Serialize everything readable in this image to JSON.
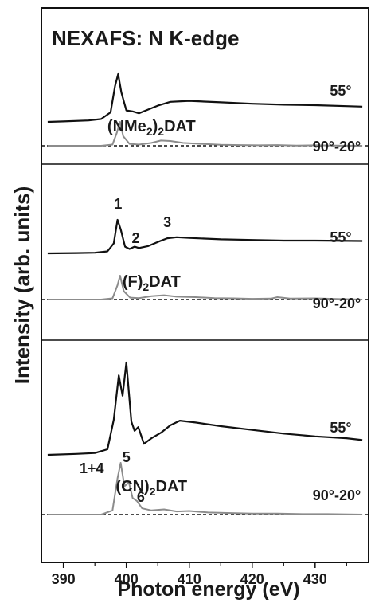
{
  "chart_data": {
    "type": "line",
    "title": "NEXAFS: N K-edge",
    "xlabel": "Photon energy (eV)",
    "ylabel": "Intensity (arb. units)",
    "xlim": [
      386.5,
      438.5
    ],
    "x_ticks": [
      390,
      400,
      410,
      420,
      430
    ],
    "x_tick_labels": [
      "390",
      "400",
      "410",
      "420",
      "430"
    ],
    "y_ticks": false,
    "grid": false,
    "legend": "none",
    "colors": {
      "angle_55": "#111111",
      "difference": "#8c8c8c",
      "baseline": "#111111"
    },
    "panels": [
      {
        "compound": "(NMe₂)₂DAT",
        "compound_base": "(NMe",
        "compound_sub1": "2",
        "compound_mid": ")",
        "compound_sub2": "2",
        "compound_tail": "DAT",
        "angle_label": "55°",
        "diff_label": "90°-20°",
        "peak_labels": [],
        "series": [
          {
            "angle": "55°",
            "color": "#111111",
            "x": [
              387.5,
              390,
              394,
              396,
              397.5,
              398.2,
              398.7,
              399.2,
              400,
              401,
              402,
              403.5,
              405,
              407,
              410,
              415,
              420,
              425,
              430,
              435,
              437.5
            ],
            "y": [
              0.0,
              0.01,
              0.03,
              0.06,
              0.2,
              0.75,
              1.0,
              0.62,
              0.24,
              0.22,
              0.18,
              0.26,
              0.34,
              0.42,
              0.44,
              0.41,
              0.38,
              0.36,
              0.35,
              0.33,
              0.32
            ]
          },
          {
            "angle": "90°-20°",
            "color": "#8c8c8c",
            "x": [
              387.5,
              396,
              397.8,
              398.5,
              399,
              399.5,
              400.5,
              402,
              404,
              405.5,
              407,
              409,
              412,
              415,
              418,
              421,
              424,
              427,
              430,
              433,
              437.5
            ],
            "y": [
              0.0,
              0.0,
              0.05,
              0.55,
              1.0,
              0.4,
              0.08,
              0.05,
              0.12,
              0.22,
              0.2,
              0.12,
              0.08,
              0.04,
              0.03,
              0.02,
              0.03,
              0.01,
              0.02,
              0.01,
              0.0
            ]
          }
        ]
      },
      {
        "compound": "(F)₂DAT",
        "compound_base": "(F)",
        "compound_sub1": "2",
        "compound_mid": "",
        "compound_sub2": "",
        "compound_tail": "DAT",
        "angle_label": "55°",
        "diff_label": "90°-20°",
        "peak_labels": [
          {
            "text": "1",
            "x": 398.7
          },
          {
            "text": "2",
            "x": 401.5
          },
          {
            "text": "3",
            "x": 406.5
          }
        ],
        "series": [
          {
            "angle": "55°",
            "color": "#111111",
            "x": [
              387.5,
              392,
              395,
              397,
              398,
              398.6,
              399.1,
              399.8,
              400.5,
              401.3,
              402,
              403.5,
              405,
              406.5,
              408,
              410,
              415,
              420,
              425,
              430,
              437.5
            ],
            "y": [
              0.0,
              0.01,
              0.02,
              0.06,
              0.3,
              1.0,
              0.72,
              0.2,
              0.13,
              0.2,
              0.16,
              0.22,
              0.34,
              0.45,
              0.48,
              0.46,
              0.42,
              0.4,
              0.38,
              0.38,
              0.37
            ]
          },
          {
            "angle": "90°-20°",
            "color": "#8c8c8c",
            "x": [
              387.5,
              396,
              397.8,
              398.6,
              399,
              399.6,
              400.6,
              402,
              404,
              406,
              408,
              411,
              414,
              417,
              420,
              423,
              424,
              426,
              430,
              434,
              437.5
            ],
            "y": [
              0.0,
              0.0,
              0.05,
              0.6,
              1.0,
              0.35,
              0.08,
              0.06,
              0.14,
              0.18,
              0.12,
              0.1,
              0.06,
              0.05,
              0.03,
              0.04,
              0.1,
              0.04,
              0.05,
              0.02,
              0.0
            ]
          }
        ]
      },
      {
        "compound": "(CN)₂DAT",
        "compound_base": "(CN)",
        "compound_sub1": "2",
        "compound_mid": "",
        "compound_sub2": "",
        "compound_tail": "DAT",
        "angle_label": "55°",
        "diff_label": "90°-20°",
        "peak_labels": [
          {
            "text": "1+4",
            "x": 394.5
          },
          {
            "text": "5",
            "x": 400.0
          },
          {
            "text": "6",
            "x": 402.3
          }
        ],
        "series": [
          {
            "angle": "55°",
            "color": "#111111",
            "x": [
              387.5,
              392,
              395,
              397,
              398,
              398.8,
              399.4,
              400,
              400.8,
              401.3,
              401.9,
              402.8,
              404,
              405.5,
              407,
              408.5,
              411,
              415,
              420,
              425,
              430,
              435,
              437.5
            ],
            "y": [
              0.0,
              0.01,
              0.02,
              0.06,
              0.38,
              0.86,
              0.64,
              1.0,
              0.36,
              0.26,
              0.3,
              0.12,
              0.18,
              0.24,
              0.32,
              0.37,
              0.35,
              0.31,
              0.27,
              0.23,
              0.2,
              0.18,
              0.16
            ]
          },
          {
            "angle": "90°-20°",
            "color": "#8c8c8c",
            "x": [
              387.5,
              396,
              397.8,
              398.6,
              399.1,
              399.7,
              400.4,
              401,
              401.7,
              402.5,
              404,
              406,
              408,
              410,
              413,
              416,
              420,
              424,
              428,
              432,
              437.5
            ],
            "y": [
              0.0,
              0.0,
              0.08,
              0.7,
              1.0,
              0.55,
              0.62,
              0.32,
              0.26,
              0.12,
              0.08,
              0.1,
              0.06,
              0.07,
              0.04,
              0.03,
              0.02,
              0.02,
              0.01,
              0.01,
              0.0
            ]
          }
        ]
      }
    ]
  }
}
